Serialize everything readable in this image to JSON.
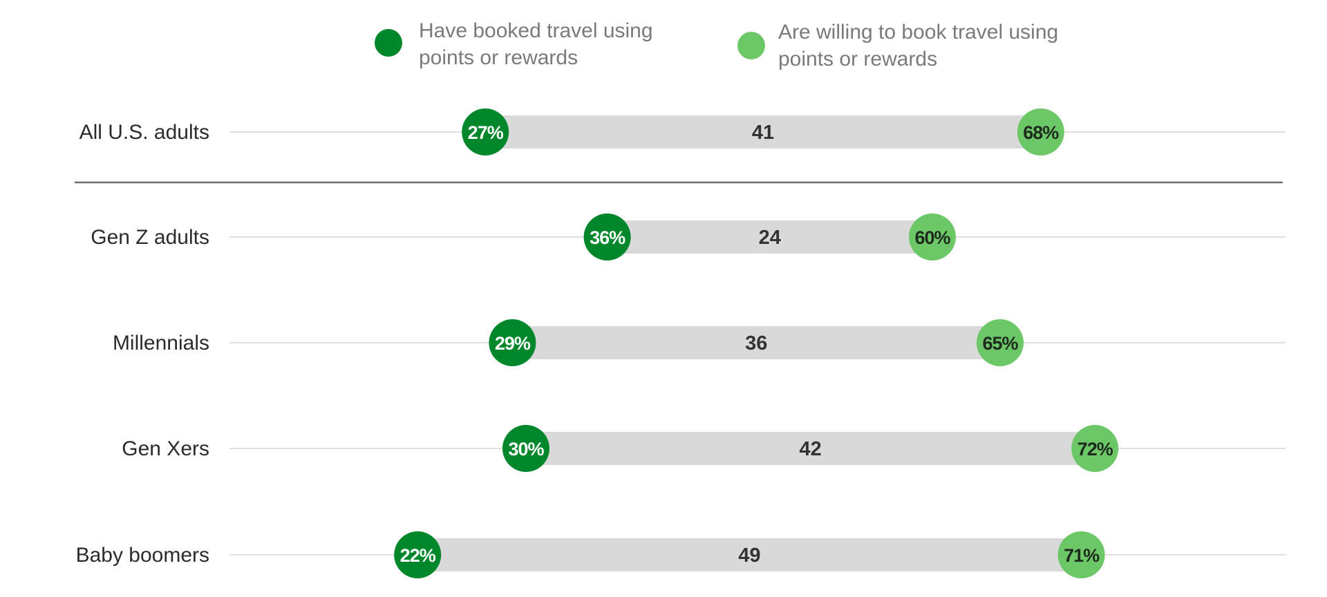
{
  "chart_data": {
    "type": "dumbbell",
    "title": "",
    "xlabel": "",
    "ylabel": "",
    "xlim": [
      0,
      100
    ],
    "grid": false,
    "legend_placement": "top-center",
    "value_suffix": "%",
    "categories": [
      "All U.S. adults",
      "Gen Z adults",
      "Millennials",
      "Gen Xers",
      "Baby boomers"
    ],
    "separator_after_index": 0,
    "series": [
      {
        "name": "Have booked travel using points or rewards",
        "legend_lines": [
          "Have booked travel using",
          "points or rewards"
        ],
        "color": "#00872b",
        "label_color": "#ffffff",
        "values": [
          27,
          36,
          29,
          30,
          22
        ]
      },
      {
        "name": "Are willing to book travel using points or rewards",
        "legend_lines": [
          "Are willing to book travel using",
          "points or rewards"
        ],
        "color": "#6cc767",
        "label_color": "#1f2a1f",
        "values": [
          68,
          60,
          65,
          72,
          71
        ]
      }
    ],
    "gaps": [
      41,
      24,
      36,
      42,
      49
    ]
  },
  "colors": {
    "gap_bar": "#d9d9d9",
    "row_line": "#d6d6d6",
    "separator": "#6d6d6d"
  }
}
